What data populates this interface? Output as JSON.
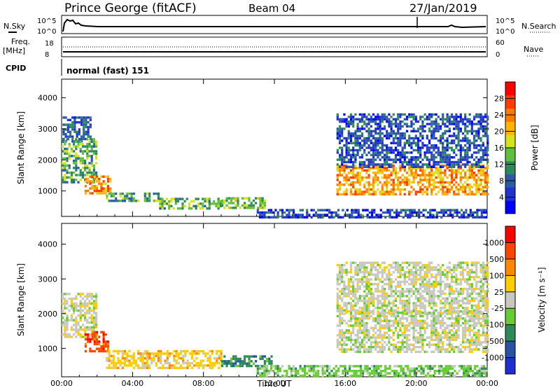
{
  "header": {
    "station": "Prince George (fitACF)",
    "beam": "Beam 04",
    "date": "27/Jan/2019"
  },
  "top_panel": {
    "nsky_label": "N.Sky",
    "nsky_ticks": [
      "10^5",
      "10^0"
    ],
    "nsearch_label": "N.Search",
    "nsearch_ticks": [
      "10^5",
      "10^0"
    ]
  },
  "freq_panel": {
    "freq_label_line1": "Freq.",
    "freq_label_line2": "[MHz]",
    "freq_ticks": [
      "18",
      "8"
    ],
    "nave_label": "Nave",
    "nave_ticks": [
      "60",
      "0"
    ]
  },
  "cpid_panel": {
    "label": "CPID",
    "program": "normal (fast) 151"
  },
  "chart_data": [
    {
      "type": "heatmap",
      "quantity": "Power",
      "ylabel": "Slant Range [km]",
      "xlabel": "Time UT",
      "x_ticks": [
        "00:00",
        "04:00",
        "08:00",
        "12:00",
        "16:00",
        "20:00",
        "00:00"
      ],
      "x_range_hours": [
        0,
        24
      ],
      "ylim": [
        180,
        4600
      ],
      "y_ticks": [
        1000,
        2000,
        3000,
        4000
      ],
      "colorbar": {
        "label": "Power [dB]",
        "range": [
          0,
          32
        ],
        "ticks": [
          4,
          8,
          12,
          16,
          20,
          24,
          28
        ],
        "colors": [
          "#0000ff",
          "#2233cc",
          "#2a5aa8",
          "#2e8b57",
          "#5fbf3f",
          "#d6e21a",
          "#ffb400",
          "#ff7a00",
          "#ff3b00",
          "#ff0000"
        ]
      },
      "regions": [
        {
          "t0": 0.05,
          "t1": 1.6,
          "r0": 2600,
          "r1": 3400,
          "level": 8
        },
        {
          "t0": 0.0,
          "t1": 1.9,
          "r0": 1300,
          "r1": 2700,
          "level": 13
        },
        {
          "t0": 1.3,
          "t1": 2.7,
          "r0": 900,
          "r1": 1500,
          "level": 23
        },
        {
          "t0": 2.5,
          "t1": 5.5,
          "r0": 650,
          "r1": 950,
          "level": 12
        },
        {
          "t0": 5.5,
          "t1": 9.0,
          "r0": 430,
          "r1": 780,
          "level": 14
        },
        {
          "t0": 9.0,
          "t1": 11.5,
          "r0": 480,
          "r1": 800,
          "level": 15
        },
        {
          "t0": 11.0,
          "t1": 24.0,
          "r0": 180,
          "r1": 420,
          "level": 6
        },
        {
          "t0": 15.5,
          "t1": 24.0,
          "r0": 900,
          "r1": 1850,
          "level": 22
        },
        {
          "t0": 15.5,
          "t1": 24.0,
          "r0": 1750,
          "r1": 3500,
          "level": 7
        }
      ]
    },
    {
      "type": "heatmap",
      "quantity": "Velocity",
      "ylabel": "Slant Range [km]",
      "xlabel": "Time UT",
      "x_ticks": [
        "00:00",
        "04:00",
        "08:00",
        "12:00",
        "16:00",
        "20:00",
        "00:00"
      ],
      "x_range_hours": [
        0,
        24
      ],
      "ylim": [
        180,
        4600
      ],
      "y_ticks": [
        1000,
        2000,
        3000,
        4000
      ],
      "colorbar": {
        "label": "Velocity [m s⁻¹]",
        "ticks": [
          "1000",
          "500",
          "100",
          "25",
          "-25",
          "-100",
          "-500",
          "-1000"
        ],
        "colors": [
          "#1e2fcf",
          "#2a52a0",
          "#2e8b57",
          "#66cc33",
          "#c8c8c0",
          "#ffcc00",
          "#ff8800",
          "#ff4400",
          "#ff0000"
        ]
      },
      "regions": [
        {
          "t0": 0.0,
          "t1": 2.0,
          "r0": 1300,
          "r1": 2600,
          "cls": 4
        },
        {
          "t0": 1.3,
          "t1": 2.6,
          "r0": 900,
          "r1": 1500,
          "cls": 7
        },
        {
          "t0": 2.5,
          "t1": 9.0,
          "r0": 430,
          "r1": 950,
          "cls": 5
        },
        {
          "t0": 9.0,
          "t1": 11.8,
          "r0": 480,
          "r1": 800,
          "cls": 2
        },
        {
          "t0": 11.0,
          "t1": 24.0,
          "r0": 180,
          "r1": 520,
          "cls": 3
        },
        {
          "t0": 15.5,
          "t1": 24.0,
          "r0": 900,
          "r1": 2100,
          "cls": 4
        },
        {
          "t0": 15.5,
          "t1": 24.0,
          "r0": 2000,
          "r1": 3500,
          "cls": 4
        }
      ]
    }
  ]
}
